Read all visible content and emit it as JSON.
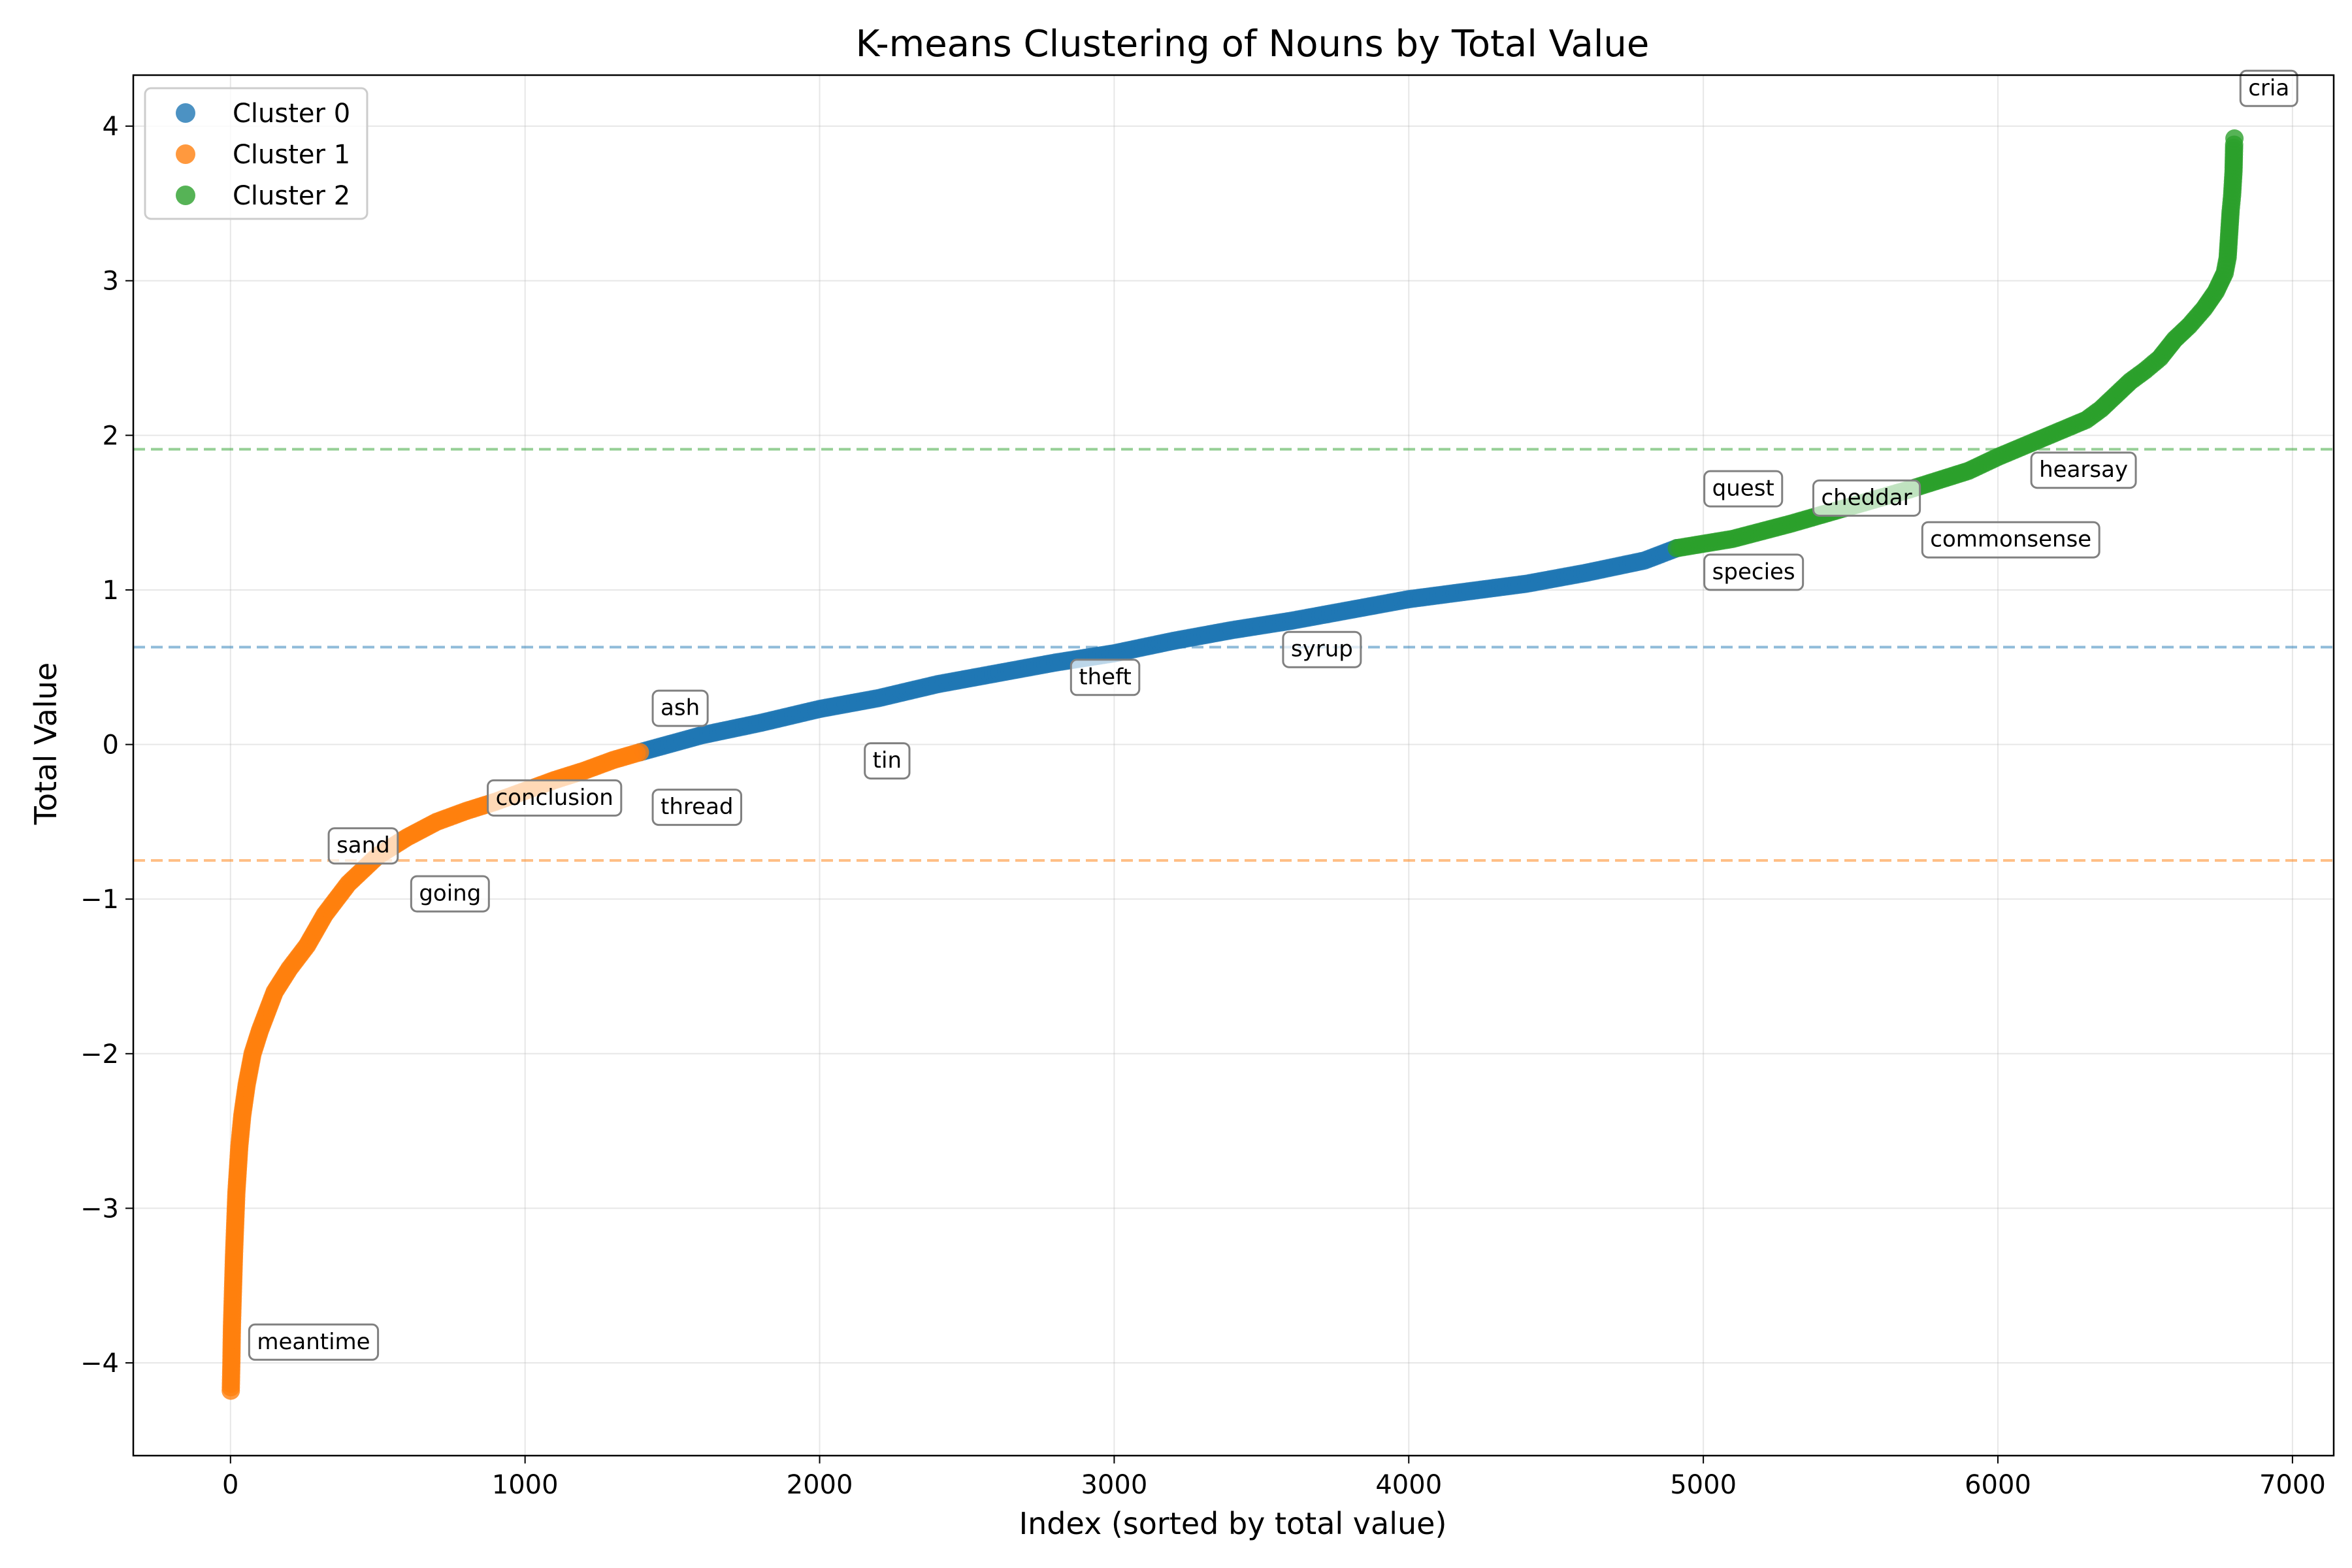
{
  "chart_data": {
    "type": "scatter",
    "title": "K-means Clustering of Nouns by Total Value",
    "xlabel": "Index (sorted by total value)",
    "ylabel": "Total Value",
    "xlim": [
      -330,
      7140
    ],
    "ylim": [
      -4.6,
      4.33
    ],
    "xticks": [
      0,
      1000,
      2000,
      3000,
      4000,
      5000,
      6000,
      7000
    ],
    "yticks": [
      -4,
      -3,
      -2,
      -1,
      0,
      1,
      2,
      3,
      4
    ],
    "grid": true,
    "legend_position": "top-left",
    "series": [
      {
        "name": "Cluster 0",
        "color": "#1f77b4",
        "centroid": 0.63,
        "points": [
          [
            1390,
            -0.05
          ],
          [
            1600,
            0.06
          ],
          [
            1800,
            0.14
          ],
          [
            2000,
            0.23
          ],
          [
            2200,
            0.3
          ],
          [
            2400,
            0.39
          ],
          [
            2600,
            0.46
          ],
          [
            2800,
            0.53
          ],
          [
            3000,
            0.59
          ],
          [
            3200,
            0.67
          ],
          [
            3400,
            0.74
          ],
          [
            3600,
            0.8
          ],
          [
            3800,
            0.87
          ],
          [
            4000,
            0.94
          ],
          [
            4200,
            0.99
          ],
          [
            4400,
            1.04
          ],
          [
            4600,
            1.11
          ],
          [
            4800,
            1.19
          ],
          [
            4910,
            1.27
          ]
        ]
      },
      {
        "name": "Cluster 1",
        "color": "#ff7f0e",
        "centroid": -0.75,
        "points": [
          [
            1,
            -4.18
          ],
          [
            3,
            -4.0
          ],
          [
            4,
            -3.87
          ],
          [
            5,
            -3.76
          ],
          [
            8,
            -3.56
          ],
          [
            12,
            -3.3
          ],
          [
            16,
            -3.1
          ],
          [
            20,
            -2.9
          ],
          [
            30,
            -2.6
          ],
          [
            40,
            -2.4
          ],
          [
            55,
            -2.2
          ],
          [
            75,
            -2.0
          ],
          [
            100,
            -1.85
          ],
          [
            150,
            -1.6
          ],
          [
            200,
            -1.45
          ],
          [
            260,
            -1.3
          ],
          [
            320,
            -1.1
          ],
          [
            400,
            -0.9
          ],
          [
            500,
            -0.72
          ],
          [
            600,
            -0.6
          ],
          [
            700,
            -0.5
          ],
          [
            800,
            -0.43
          ],
          [
            900,
            -0.37
          ],
          [
            1000,
            -0.3
          ],
          [
            1100,
            -0.23
          ],
          [
            1200,
            -0.17
          ],
          [
            1300,
            -0.1
          ],
          [
            1390,
            -0.05
          ]
        ]
      },
      {
        "name": "Cluster 2",
        "color": "#2ca02c",
        "centroid": 1.91,
        "points": [
          [
            4910,
            1.27
          ],
          [
            5100,
            1.33
          ],
          [
            5300,
            1.43
          ],
          [
            5500,
            1.54
          ],
          [
            5700,
            1.65
          ],
          [
            5900,
            1.77
          ],
          [
            6000,
            1.86
          ],
          [
            6100,
            1.94
          ],
          [
            6200,
            2.02
          ],
          [
            6300,
            2.1
          ],
          [
            6350,
            2.17
          ],
          [
            6400,
            2.26
          ],
          [
            6450,
            2.35
          ],
          [
            6500,
            2.42
          ],
          [
            6550,
            2.5
          ],
          [
            6600,
            2.62
          ],
          [
            6650,
            2.71
          ],
          [
            6700,
            2.82
          ],
          [
            6740,
            2.93
          ],
          [
            6770,
            3.05
          ],
          [
            6780,
            3.15
          ],
          [
            6785,
            3.3
          ],
          [
            6790,
            3.45
          ],
          [
            6795,
            3.55
          ],
          [
            6800,
            3.71
          ],
          [
            6802,
            3.88
          ],
          [
            6803,
            3.92
          ]
        ]
      }
    ],
    "annotations": [
      {
        "text": "meantime",
        "x": 1,
        "y": -4.18,
        "tx": 90,
        "ty": -3.87
      },
      {
        "text": "sand",
        "x": 430,
        "y": -0.85,
        "tx": 360,
        "ty": -0.66
      },
      {
        "text": "going",
        "x": 470,
        "y": -0.78,
        "tx": 640,
        "ty": -0.97
      },
      {
        "text": "conclusion",
        "x": 1050,
        "y": -0.27,
        "tx": 900,
        "ty": -0.35
      },
      {
        "text": "thread",
        "x": 1390,
        "y": -0.05,
        "tx": 1460,
        "ty": -0.41
      },
      {
        "text": "ash",
        "x": 1450,
        "y": -0.03,
        "tx": 1460,
        "ty": 0.23
      },
      {
        "text": "tin",
        "x": 2150,
        "y": 0.3,
        "tx": 2180,
        "ty": -0.11
      },
      {
        "text": "theft",
        "x": 2700,
        "y": 0.5,
        "tx": 2880,
        "ty": 0.43
      },
      {
        "text": "syrup",
        "x": 3450,
        "y": 0.76,
        "tx": 3600,
        "ty": 0.61
      },
      {
        "text": "quest",
        "x": 4920,
        "y": 1.27,
        "tx": 5030,
        "ty": 1.65
      },
      {
        "text": "species",
        "x": 4910,
        "y": 1.27,
        "tx": 5030,
        "ty": 1.11
      },
      {
        "text": "cheddar",
        "x": 5450,
        "y": 1.5,
        "tx": 5400,
        "ty": 1.59
      },
      {
        "text": "commonsense",
        "x": 5800,
        "y": 1.72,
        "tx": 5770,
        "ty": 1.32
      },
      {
        "text": "hearsay",
        "x": 6130,
        "y": 1.97,
        "tx": 6140,
        "ty": 1.77
      },
      {
        "text": "cria",
        "x": 6803,
        "y": 3.92,
        "tx": 6850,
        "ty": 4.24
      }
    ]
  }
}
